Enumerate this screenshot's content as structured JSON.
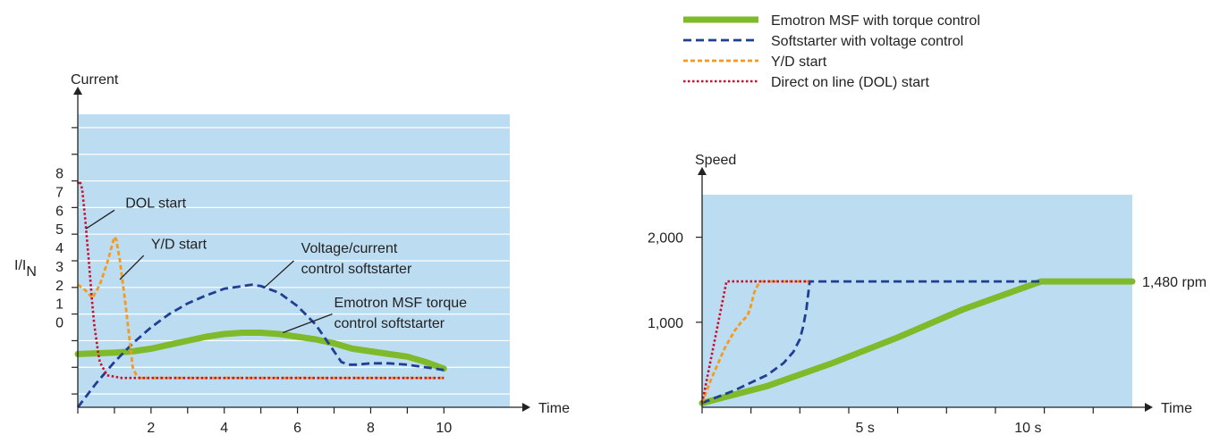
{
  "colors": {
    "plot_bg": "#bcdcf1",
    "grid": "#ffffff",
    "axis": "#222222",
    "text": "#222222",
    "torque": "#7fba2a",
    "voltage": "#1f3f93",
    "yd": "#f59a1c",
    "dol": "#c8102e"
  },
  "legend": {
    "items": [
      {
        "key": "torque",
        "label": "Emotron MSF with torque control",
        "style": "thick"
      },
      {
        "key": "voltage",
        "label": "Softstarter with voltage control",
        "style": "dashed"
      },
      {
        "key": "yd",
        "label": "Y/D start",
        "style": "dashed-fine"
      },
      {
        "key": "dol",
        "label": "Direct on line (DOL) start",
        "style": "dotted"
      }
    ]
  },
  "chart_data": [
    {
      "type": "line",
      "name": "current",
      "ylabel": "Current",
      "ratio_label": {
        "main": "I/I",
        "sub": "N"
      },
      "xlabel": "Time",
      "xlim": [
        0,
        11.8
      ],
      "ylim": [
        -2.5,
        8.5
      ],
      "x_ticks": [
        0,
        1,
        2,
        3,
        4,
        5,
        6,
        7,
        8,
        9,
        10
      ],
      "x_tick_labels": [
        {
          "x": 2,
          "label": "2"
        },
        {
          "x": 4,
          "label": "4"
        },
        {
          "x": 6,
          "label": "6"
        },
        {
          "x": 8,
          "label": "8"
        },
        {
          "x": 10,
          "label": "10"
        }
      ],
      "y_ticks": [
        -2,
        -1,
        0,
        1,
        2,
        3,
        4,
        5,
        6,
        7,
        8
      ],
      "y_grid": [
        -2,
        -1,
        0,
        1,
        2,
        3,
        4,
        5,
        6,
        7,
        8
      ],
      "y_tick_labels": [
        {
          "y": 0.7,
          "label": "0"
        },
        {
          "y": 1.4,
          "label": "1"
        },
        {
          "y": 2.1,
          "label": "2"
        },
        {
          "y": 2.8,
          "label": "3"
        },
        {
          "y": 3.5,
          "label": "4"
        },
        {
          "y": 4.2,
          "label": "5"
        },
        {
          "y": 4.9,
          "label": "6"
        },
        {
          "y": 5.6,
          "label": "7"
        },
        {
          "y": 6.3,
          "label": "8"
        }
      ],
      "series": [
        {
          "key": "dol",
          "x": [
            0,
            0.05,
            0.12,
            0.2,
            0.3,
            0.4,
            0.45,
            0.5,
            0.55,
            0.6,
            0.8,
            1.2,
            10
          ],
          "y": [
            5.9,
            6.0,
            5.7,
            4.6,
            3.0,
            1.3,
            0.6,
            0.1,
            -0.4,
            -0.8,
            -1.3,
            -1.4,
            -1.4
          ]
        },
        {
          "key": "yd",
          "x": [
            0,
            0.2,
            0.4,
            0.6,
            0.8,
            0.9,
            1.0,
            1.05,
            1.15,
            1.3,
            1.45,
            1.5,
            1.6,
            1.7,
            10
          ],
          "y": [
            2.1,
            1.9,
            1.6,
            2.1,
            2.9,
            3.4,
            3.9,
            3.8,
            3.0,
            1.4,
            -0.4,
            -1.0,
            -1.3,
            -1.4,
            -1.4
          ]
        },
        {
          "key": "voltage",
          "x": [
            0,
            0.5,
            1.0,
            1.5,
            2.0,
            2.5,
            3.0,
            3.5,
            4.0,
            4.5,
            4.75,
            5.0,
            5.5,
            6.0,
            6.5,
            7.0,
            7.2,
            7.4,
            7.6,
            8.0,
            8.5,
            9.0,
            9.5,
            10
          ],
          "y": [
            -2.5,
            -1.6,
            -0.8,
            -0.1,
            0.5,
            1.0,
            1.4,
            1.7,
            1.95,
            2.05,
            2.1,
            2.05,
            1.8,
            1.3,
            0.6,
            -0.4,
            -0.8,
            -0.9,
            -0.9,
            -0.85,
            -0.85,
            -0.9,
            -1.0,
            -1.1
          ]
        },
        {
          "key": "torque",
          "x": [
            0,
            1,
            1.5,
            2,
            2.5,
            3,
            3.5,
            4,
            4.5,
            5,
            5.5,
            6,
            6.5,
            7,
            7.5,
            8,
            8.5,
            9,
            9.5,
            10
          ],
          "y": [
            -0.5,
            -0.45,
            -0.4,
            -0.3,
            -0.15,
            0,
            0.15,
            0.25,
            0.3,
            0.3,
            0.25,
            0.15,
            0.05,
            -0.1,
            -0.3,
            -0.4,
            -0.5,
            -0.6,
            -0.8,
            -1.05
          ]
        }
      ],
      "annotations": [
        {
          "lines": [
            "DOL start"
          ],
          "x": 1.3,
          "y": 5.0,
          "pointer": [
            [
              1.0,
              4.9
            ],
            [
              0.22,
              4.2
            ]
          ],
          "anchor": "start"
        },
        {
          "lines": [
            "Y/D start"
          ],
          "x": 2.0,
          "y": 3.45,
          "pointer": [
            [
              1.8,
              3.2
            ],
            [
              1.15,
              2.3
            ]
          ],
          "anchor": "start"
        },
        {
          "lines": [
            "Voltage/current",
            "control softstarter"
          ],
          "x": 6.1,
          "y": 3.3,
          "pointer": [
            [
              5.9,
              3.0
            ],
            [
              5.1,
              2.0
            ]
          ],
          "anchor": "start"
        },
        {
          "lines": [
            "Emotron MSF torque",
            "control softstarter"
          ],
          "x": 7.0,
          "y": 1.25,
          "pointer": [
            [
              6.95,
              1.0
            ],
            [
              5.6,
              0.3
            ]
          ],
          "anchor": "start"
        }
      ]
    },
    {
      "type": "line",
      "name": "speed",
      "ylabel": "Speed",
      "xlabel": "Time",
      "xlim": [
        0,
        13.2
      ],
      "ylim": [
        0,
        2500
      ],
      "x_ticks": [
        0,
        1.5,
        3,
        4.5,
        6,
        7.5,
        9,
        10.5,
        12
      ],
      "x_tick_labels": [
        {
          "x": 5,
          "label": "5 s"
        },
        {
          "x": 10,
          "label": "10 s"
        }
      ],
      "y_ticks": [
        1000,
        2000
      ],
      "y_tick_labels": [
        {
          "y": 1000,
          "label": "1,000"
        },
        {
          "y": 2000,
          "label": "2,000"
        }
      ],
      "end_label": {
        "y": 1480,
        "label": "1,480 rpm"
      },
      "series": [
        {
          "key": "dol",
          "x": [
            0,
            0.75,
            3.3
          ],
          "y": [
            50,
            1480,
            1480
          ]
        },
        {
          "key": "yd",
          "x": [
            0,
            0.3,
            0.7,
            1.0,
            1.2,
            1.4,
            1.5,
            1.6,
            1.7,
            1.8,
            3.3
          ],
          "y": [
            50,
            350,
            700,
            900,
            1000,
            1080,
            1200,
            1350,
            1430,
            1480,
            1480
          ]
        },
        {
          "key": "voltage",
          "x": [
            0,
            1,
            2,
            2.5,
            2.8,
            3.0,
            3.1,
            3.2,
            3.3,
            10.4
          ],
          "y": [
            50,
            200,
            380,
            520,
            650,
            800,
            950,
            1150,
            1480,
            1480
          ]
        },
        {
          "key": "torque",
          "x": [
            0,
            2,
            4,
            6,
            8,
            10.4,
            13.2
          ],
          "y": [
            50,
            250,
            520,
            820,
            1150,
            1480,
            1480
          ]
        }
      ]
    }
  ]
}
